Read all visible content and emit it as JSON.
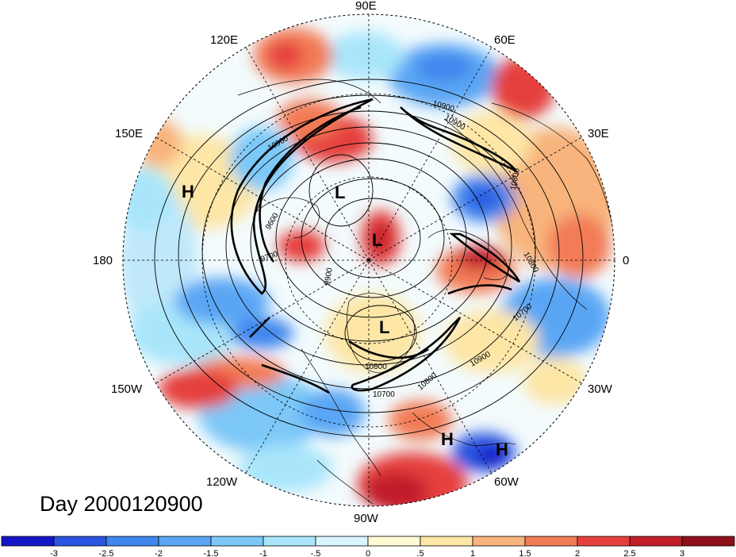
{
  "title": "Day 2000120900",
  "map": {
    "projection": "north polar stereographic",
    "longitude_labels": [
      "90E",
      "60E",
      "30E",
      "0",
      "30W",
      "60W",
      "90W",
      "120W",
      "150W",
      "180",
      "150E",
      "120E"
    ],
    "pressure_systems": [
      {
        "type": "H",
        "label": "H"
      },
      {
        "type": "L",
        "label": "L"
      },
      {
        "type": "L",
        "label": "L"
      },
      {
        "type": "L",
        "label": "L"
      },
      {
        "type": "H",
        "label": "H"
      },
      {
        "type": "H",
        "label": "H"
      }
    ],
    "contour_labels": [
      "10900",
      "10900",
      "10800",
      "10800",
      "10700",
      "10900",
      "10800",
      "10700",
      "10800",
      "9600",
      "9700",
      "9900",
      "10900"
    ]
  },
  "colorbar": {
    "tick_labels": [
      "-3",
      "-2.5",
      "-2",
      "-1.5",
      "-1",
      "-.5",
      "0",
      ".5",
      "1",
      "1.5",
      "2",
      "2.5",
      "3"
    ],
    "colors": [
      "#1515c8",
      "#2a55e0",
      "#3f86ee",
      "#5aa6f4",
      "#7cc8f8",
      "#a9e6fb",
      "#d8f5fd",
      "#fefbd4",
      "#fde6a6",
      "#f8b47c",
      "#f27c56",
      "#e5413c",
      "#c11f2a",
      "#8f0f1c"
    ]
  }
}
